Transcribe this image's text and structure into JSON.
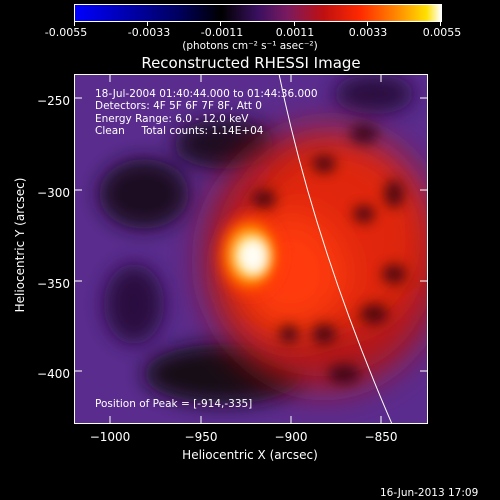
{
  "colorbar": {
    "ticks": [
      "-0.0055",
      "-0.0033",
      "-0.0011",
      "0.0011",
      "0.0033",
      "0.0055"
    ],
    "unit_label": "(photons cm⁻² s⁻¹ asec⁻²)",
    "colors": [
      "#0000ff",
      "#000000",
      "#5a1a8a",
      "#b01010",
      "#ff2000",
      "#ffa000",
      "#ffffff"
    ]
  },
  "image": {
    "title": "Reconstructed RHESSI Image",
    "info_lines": [
      "18-Jul-2004 01:40:44.000 to 01:44:36.000",
      "Detectors: 4F 5F 6F 7F 8F, Att 0",
      "Energy Range: 6.0 - 12.0 keV",
      "Clean     Total counts: 1.14E+04"
    ],
    "peak_label": "Position of Peak = [-914,-335]",
    "x_axis_label": "Heliocentric X (arcsec)",
    "y_axis_label": "Heliocentric Y (arcsec)",
    "x_ticks": [
      "−1000",
      "−950",
      "−900",
      "−850"
    ],
    "y_ticks": [
      "−250",
      "−300",
      "−350",
      "−400"
    ],
    "x_range": [
      -1024,
      -822
    ],
    "y_range": [
      -426,
      -235
    ],
    "x_tick_values": [
      -1000,
      -950,
      -900,
      -850
    ],
    "y_tick_values": [
      -250,
      -300,
      -350,
      -400
    ],
    "peak": [
      -914,
      -335
    ]
  },
  "footer": {
    "timestamp": "16-Jun-2013 17:09"
  }
}
